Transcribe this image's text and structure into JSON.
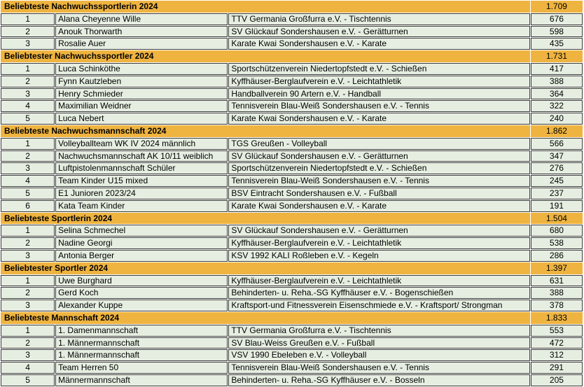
{
  "table": {
    "colors": {
      "header_bg": "#EFB440",
      "row_bg": "#E6EEE1",
      "border": "#3B3B3B",
      "text": "#000000"
    },
    "sections": [
      {
        "title": "Beliebteste Nachwuchssportlerin 2024",
        "total": "1.709",
        "rows": [
          {
            "rank": "1",
            "name": "Alana Cheyenne Wille",
            "club": "TTV Germania Großfurra e.V. - Tischtennis",
            "votes": "676"
          },
          {
            "rank": "2",
            "name": "Anouk Thorwarth",
            "club": "SV Glückauf Sondershausen e.V.  - Gerätturnen",
            "votes": "598"
          },
          {
            "rank": "3",
            "name": "Rosalie Auer",
            "club": "Karate Kwai Sondershausen e.V. - Karate",
            "votes": "435"
          }
        ]
      },
      {
        "title": "Beliebtester Nachwuchssportler 2024",
        "total": "1.731",
        "rows": [
          {
            "rank": "1",
            "name": "Luca Schinköthe",
            "club": "Sportschützenverein Niedertopfstedt e.V. - Schießen",
            "votes": "417"
          },
          {
            "rank": "2",
            "name": "Fynn Kautzleben",
            "club": "Kyffhäuser-Berglaufverein e.V. - Leichtathletik",
            "votes": "388"
          },
          {
            "rank": "3",
            "name": "Henry Schmieder",
            "club": "Handballverein 90 Artern e.V. - Handball",
            "votes": "364"
          },
          {
            "rank": "4",
            "name": "Maximilian Weidner",
            "club": "Tennisverein Blau-Weiß Sondershausen e.V. - Tennis",
            "votes": "322"
          },
          {
            "rank": "5",
            "name": "Luca Nebert",
            "club": "Karate Kwai Sondershausen e.V. - Karate",
            "votes": "240"
          }
        ]
      },
      {
        "title": "Beliebteste Nachwuchsmannschaft 2024",
        "total": "1.862",
        "rows": [
          {
            "rank": "1",
            "name": "Volleyballteam WK IV 2024 männlich",
            "club": "TGS Greußen - Volleyball",
            "votes": "566"
          },
          {
            "rank": "2",
            "name": "Nachwuchsmannschaft AK 10/11 weiblich",
            "club": "SV Glückauf Sondershausen e.V. - Gerätturnen",
            "votes": "347"
          },
          {
            "rank": "3",
            "name": "Luftpistolenmannschaft Schüler",
            "club": "Sportschützenverein Niedertopfstedt e.V. - Schießen",
            "votes": "276"
          },
          {
            "rank": "4",
            "name": "Team Kinder U15 mixed",
            "club": "Tennisverein Blau-Weiß Sondershausen e.V. - Tennis",
            "votes": "245"
          },
          {
            "rank": "5",
            "name": "E1 Junioren 2023/24",
            "club": "BSV Eintracht Sondershausen e.V. - Fußball",
            "votes": "237"
          },
          {
            "rank": "6",
            "name": "Kata Team Kinder",
            "club": "Karate Kwai Sondershausen e.V. - Karate",
            "votes": "191"
          }
        ]
      },
      {
        "title": "Beliebteste Sportlerin 2024",
        "total": "1.504",
        "rows": [
          {
            "rank": "1",
            "name": "Selina Schmechel",
            "club": "SV Glückauf Sondershausen e.V. - Gerätturnen",
            "votes": "680"
          },
          {
            "rank": "2",
            "name": "Nadine Georgi",
            "club": "Kyffhäuser-Berglaufverein e.V. - Leichtathletik",
            "votes": "538"
          },
          {
            "rank": "3",
            "name": "Antonia Berger",
            "club": "KSV 1992 KALI Roßleben e.V. - Kegeln",
            "votes": "286"
          }
        ]
      },
      {
        "title": "Beliebtester Sportler 2024",
        "total": "1.397",
        "rows": [
          {
            "rank": "1",
            "name": "Uwe Burghard",
            "club": "Kyffhäuser-Berglaufverein e.V. - Leichtathletik",
            "votes": "631"
          },
          {
            "rank": "2",
            "name": "Gerd Koch",
            "club": "Behinderten- u. Reha.-SG Kyffhäuser e.V. - Bogenschießen",
            "votes": "388"
          },
          {
            "rank": "3",
            "name": "Alexander Kuppe",
            "club": "Kraftsport-und Fitnessverein Eisenschmiede e.V. - Kraftsport/ Strongman",
            "votes": "378"
          }
        ]
      },
      {
        "title": "Beliebteste Mannschaft 2024",
        "total": "1.833",
        "rows": [
          {
            "rank": "1",
            "name": "1. Damenmannschaft",
            "club": "TTV Germania Großfurra e.V. - Tischtennis",
            "votes": "553"
          },
          {
            "rank": "2",
            "name": "1. Männermannschaft",
            "club": "SV Blau-Weiss Greußen e.V. - Fußball",
            "votes": "472"
          },
          {
            "rank": "3",
            "name": "1. Männermannschaft",
            "club": "VSV 1990 Ebeleben e.V. - Volleyball",
            "votes": "312"
          },
          {
            "rank": "4",
            "name": "Team Herren 50",
            "club": "Tennisverein Blau-Weiß Sondershausen e.V. - Tennis",
            "votes": "291"
          },
          {
            "rank": "5",
            "name": "Männermannschaft",
            "club": "Behinderten- u. Reha.-SG Kyffhäuser e.V. - Bosseln",
            "votes": "205"
          }
        ]
      }
    ]
  }
}
